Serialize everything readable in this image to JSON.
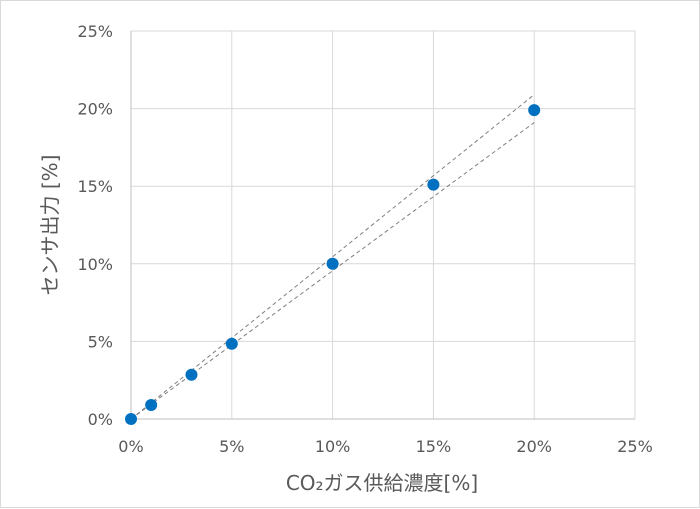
{
  "chart_data": {
    "type": "scatter",
    "xlabel": "CO₂ガス供給濃度[%]",
    "ylabel": "センサ出力 [%]",
    "xlim": [
      0,
      25
    ],
    "ylim": [
      0,
      25
    ],
    "x_ticks": [
      "0%",
      "5%",
      "10%",
      "15%",
      "20%",
      "25%"
    ],
    "y_ticks": [
      "0%",
      "5%",
      "10%",
      "15%",
      "20%",
      "25%"
    ],
    "grid": true,
    "legend": "none",
    "marker_color": "#0070c0",
    "series": [
      {
        "x": [
          0,
          1,
          3,
          5,
          10,
          15,
          20
        ],
        "y": [
          0,
          0.9,
          2.85,
          4.85,
          10.0,
          15.1,
          19.9
        ]
      }
    ],
    "tolerance_lines": [
      {
        "x": [
          0,
          20
        ],
        "y": [
          0,
          20.9
        ]
      },
      {
        "x": [
          0,
          20
        ],
        "y": [
          0,
          19.1
        ]
      }
    ]
  }
}
